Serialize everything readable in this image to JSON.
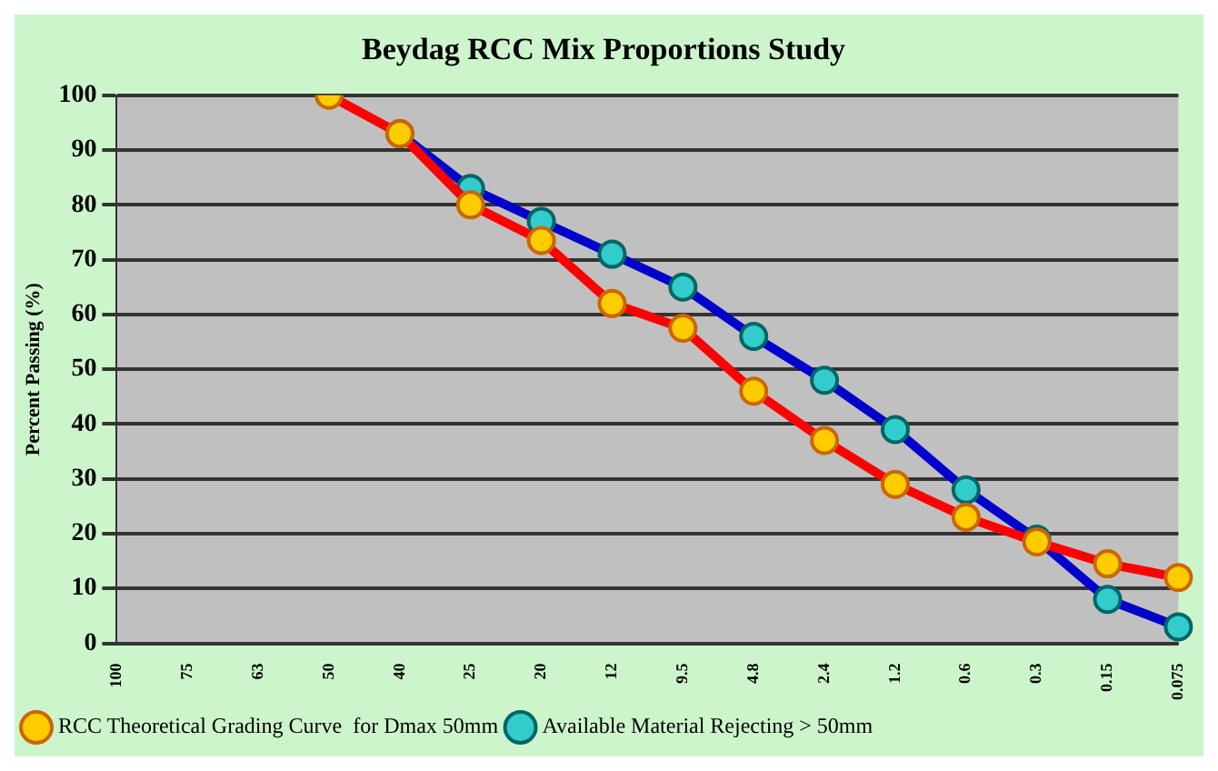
{
  "chart_data": {
    "type": "line",
    "title": "Beydag RCC Mix Proportions Study",
    "ylabel": "Percent Passing (%)",
    "categories": [
      "100",
      "75",
      "63",
      "50",
      "40",
      "25",
      "20",
      "12",
      "9.5",
      "4.8",
      "2.4",
      "1.2",
      "0.6",
      "0.3",
      "0.15",
      "0.075"
    ],
    "ylim": [
      0,
      100
    ],
    "yticks": [
      0,
      10,
      20,
      30,
      40,
      50,
      60,
      70,
      80,
      90,
      100
    ],
    "grid": "y",
    "legend": "bottom left",
    "marker": "circle",
    "line_style": "solid",
    "series": [
      {
        "name": "Available Material Rejecting > 50mm",
        "color": "#0000cc",
        "values": [
          null,
          null,
          null,
          null,
          93,
          83,
          77,
          71,
          65,
          56,
          48,
          39,
          28,
          19,
          8,
          3
        ]
      },
      {
        "name": "RCC Theoretical Grading Curve  for Dmax 50mm",
        "color": "#ff0000",
        "values": [
          null,
          null,
          null,
          100,
          93,
          80,
          73.5,
          62,
          57.5,
          46,
          37,
          29,
          23,
          18.5,
          14.5,
          12
        ]
      }
    ]
  }
}
